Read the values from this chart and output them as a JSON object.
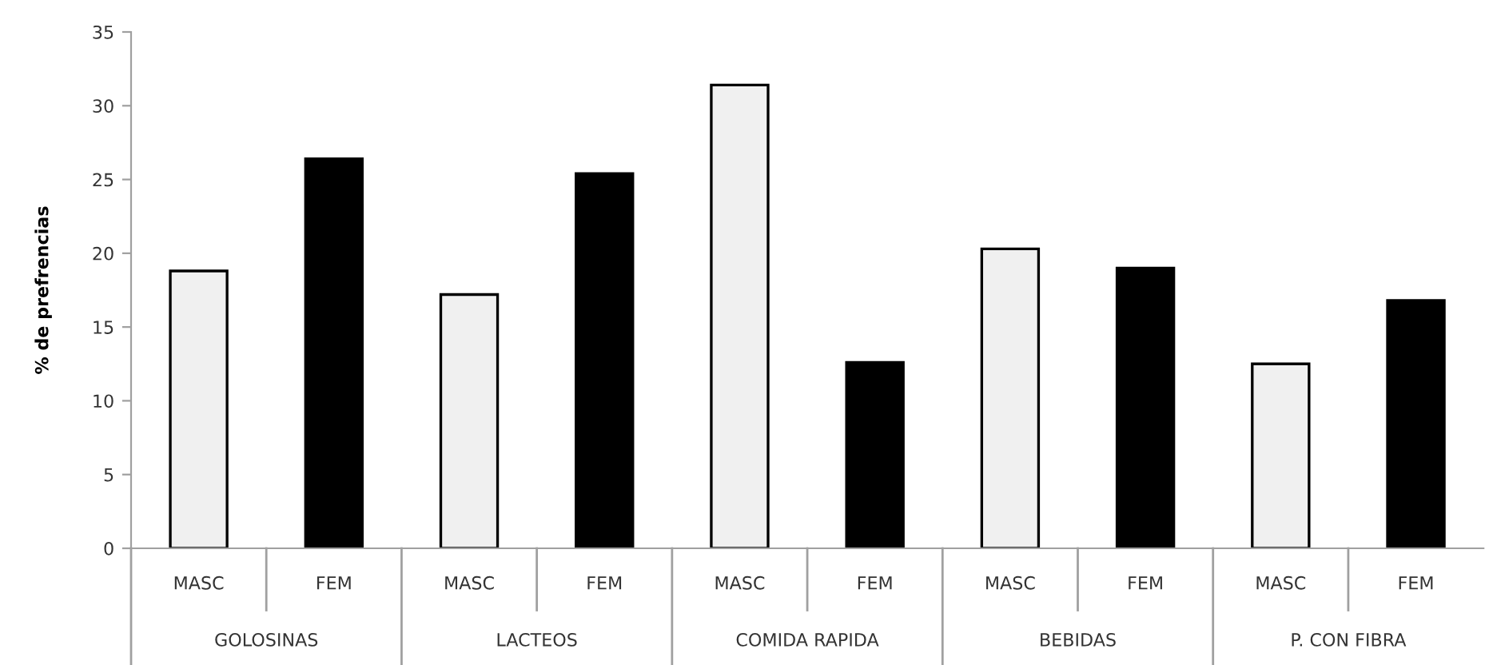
{
  "chart_data": {
    "type": "bar",
    "ylabel": "% de prefrencias",
    "categories": [
      "GOLOSINAS",
      "LACTEOS",
      "COMIDA RAPIDA",
      "BEBIDAS",
      "P. CON FIBRA"
    ],
    "series": [
      {
        "name": "MASC",
        "color": "#f0f0f0",
        "values": [
          18.8,
          17.2,
          31.4,
          20.3,
          12.5
        ]
      },
      {
        "name": "FEM",
        "color": "#000000",
        "values": [
          26.4,
          25.4,
          12.6,
          19.0,
          16.8
        ]
      }
    ],
    "ylim": [
      0,
      35
    ],
    "yticks": [
      0,
      5,
      10,
      15,
      20,
      25,
      30,
      35
    ],
    "grid": false,
    "legend": false
  }
}
